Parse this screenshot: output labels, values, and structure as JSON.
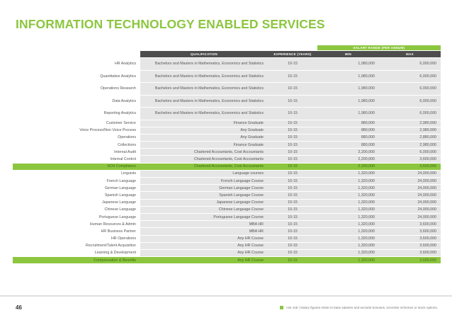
{
  "title": "INFORMATION TECHNOLOGY ENABLED SERVICES",
  "salary_band_label": "SALARY RANGE (PER ANNUM)",
  "columns": {
    "qualification": "QUALIFICATION",
    "experience": "EXPERIENCE (YEARS)",
    "min": "MIN",
    "max": "MAX"
  },
  "rows": [
    {
      "role": "HR Analytics",
      "qualification": "Bachelors and Masters in Mathematics, Economics and Statistics",
      "experience": "10-15",
      "min": "1,980,000",
      "max": "6,000,000",
      "hot": false,
      "tall": true
    },
    {
      "role": "Quantitative Analytics",
      "qualification": "Bachelors and Masters in Mathematics, Economics and Statistics",
      "experience": "10-15",
      "min": "1,980,000",
      "max": "6,000,000",
      "hot": false,
      "tall": true
    },
    {
      "role": "Operations Research",
      "qualification": "Bachelors and Masters in Mathematics, Economics and Statistics",
      "experience": "10-15",
      "min": "1,980,000",
      "max": "6,000,000",
      "hot": false,
      "tall": true
    },
    {
      "role": "Data Analytics",
      "qualification": "Bachelors and Masters in Mathematics, Economics and Statistics",
      "experience": "10-15",
      "min": "1,980,000",
      "max": "6,000,000",
      "hot": false,
      "tall": true
    },
    {
      "role": "Reporting Analytics",
      "qualification": "Bachelors and Masters in Mathematics, Economics and Statistics",
      "experience": "10-15",
      "min": "1,980,000",
      "max": "6,000,000",
      "hot": false,
      "tall": true
    },
    {
      "role": "Customer Service",
      "qualification": "Finance Graduate",
      "experience": "10-15",
      "min": "880,000",
      "max": "2,980,000",
      "hot": false,
      "tall": false
    },
    {
      "role": "Voice Process/Non Voice Process",
      "qualification": "Any Graduate",
      "experience": "10-15",
      "min": "880,000",
      "max": "2,980,000",
      "hot": false,
      "tall": false
    },
    {
      "role": "Operations",
      "qualification": "Any Graduate",
      "experience": "10-15",
      "min": "880,000",
      "max": "2,880,000",
      "hot": false,
      "tall": false
    },
    {
      "role": "Collections",
      "qualification": "Finance Graduate",
      "experience": "10-15",
      "min": "880,000",
      "max": "2,980,000",
      "hot": false,
      "tall": false
    },
    {
      "role": "Internal Audit",
      "qualification": "Chartered Accountants, Cost Accountants",
      "experience": "10-15",
      "min": "2,200,000",
      "max": "6,000,000",
      "hot": false,
      "tall": false
    },
    {
      "role": "Internal Control",
      "qualification": "Chartered Accountants, Cost Accountants",
      "experience": "10-15",
      "min": "2,200,000",
      "max": "3,600,000",
      "hot": false,
      "tall": false
    },
    {
      "role": "SOX Compliance",
      "qualification": "Chartered Accountants, Cost Accountants",
      "experience": "10-15",
      "min": "2,200,000",
      "max": "3,600,000",
      "hot": true,
      "tall": false
    },
    {
      "role": "Linguists",
      "qualification": "Language courses",
      "experience": "10-15",
      "min": "1,320,000",
      "max": "24,000,000",
      "hot": false,
      "tall": false
    },
    {
      "role": "French Language",
      "qualification": "French Language Course",
      "experience": "10-15",
      "min": "1,320,000",
      "max": "24,000,000",
      "hot": false,
      "tall": false
    },
    {
      "role": "German Language",
      "qualification": "German Language Course",
      "experience": "10-15",
      "min": "1,320,000",
      "max": "24,000,000",
      "hot": false,
      "tall": false
    },
    {
      "role": "Spanish Language",
      "qualification": "Spanish Language Course",
      "experience": "10-15",
      "min": "1,320,000",
      "max": "24,000,000",
      "hot": false,
      "tall": false
    },
    {
      "role": "Japanese Language",
      "qualification": "Japanese Language Course",
      "experience": "10-15",
      "min": "1,320,000",
      "max": "24,000,000",
      "hot": false,
      "tall": false
    },
    {
      "role": "Chinese Language",
      "qualification": "Chinese Language Course",
      "experience": "10-15",
      "min": "1,320,000",
      "max": "24,000,000",
      "hot": false,
      "tall": false
    },
    {
      "role": "Portuguese Language",
      "qualification": "Portuguese Language Course",
      "experience": "10-15",
      "min": "1,320,000",
      "max": "24,000,000",
      "hot": false,
      "tall": false
    },
    {
      "role": "Human Resources & Admin",
      "qualification": "MBA HR",
      "experience": "10-15",
      "min": "1,320,000",
      "max": "3,600,000",
      "hot": false,
      "tall": false
    },
    {
      "role": "HR Business Partner",
      "qualification": "MBA HR",
      "experience": "10-15",
      "min": "1,320,000",
      "max": "3,600,000",
      "hot": false,
      "tall": false
    },
    {
      "role": "HR Operations",
      "qualification": "Any HR Course",
      "experience": "10-15",
      "min": "1,320,000",
      "max": "3,600,000",
      "hot": false,
      "tall": false
    },
    {
      "role": "Recruitment/Talent Acquisition",
      "qualification": "Any HR Course",
      "experience": "10-15",
      "min": "1,320,000",
      "max": "3,600,000",
      "hot": false,
      "tall": false
    },
    {
      "role": "Learning & Development",
      "qualification": "Any HR Course",
      "experience": "10-15",
      "min": "1,320,000",
      "max": "3,600,000",
      "hot": false,
      "tall": false
    },
    {
      "role": "Compensation & Benefits",
      "qualification": "Any HR Course",
      "experience": "10-15",
      "min": "1,320,000",
      "max": "3,600,000",
      "hot": true,
      "tall": false
    }
  ],
  "footer": {
    "page_number": "46",
    "legend": "Hot Job  |  Salary figures relate to base salaries and exclude bonuses, incentive schemes or stock options."
  },
  "colors": {
    "accent": "#8cc63f",
    "header": "#4d4d4d",
    "row": "#e6e6e6"
  }
}
